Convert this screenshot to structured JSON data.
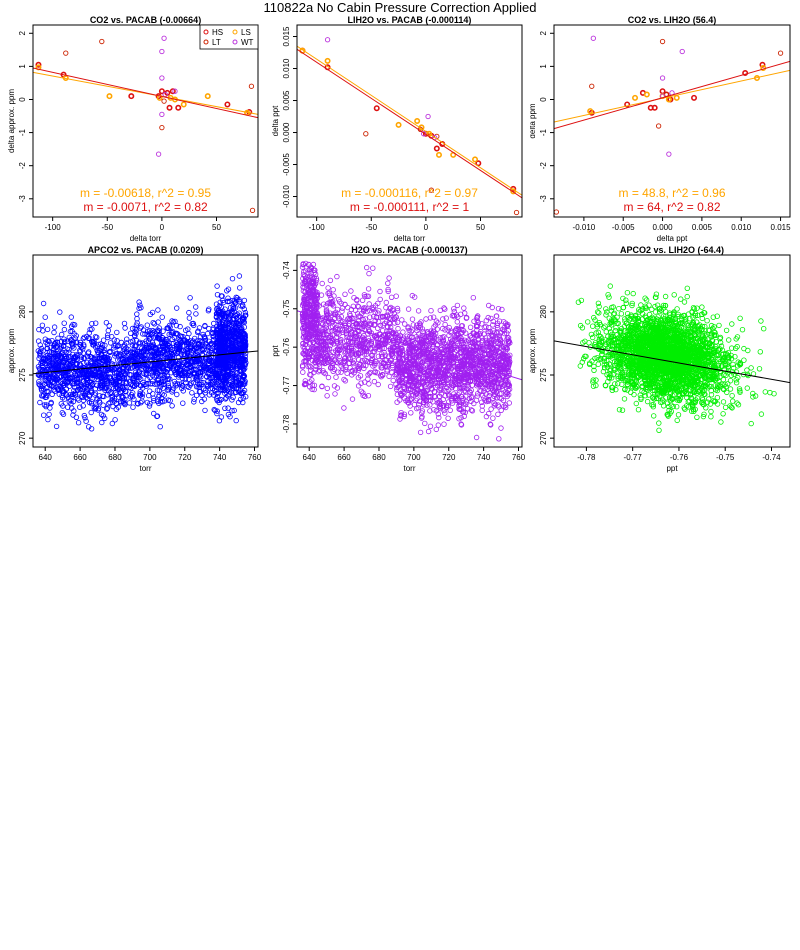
{
  "figure_title": "110822a   No Cabin Pressure Correction Applied",
  "colors": {
    "HS": "#dd1111",
    "LS": "#ffa500",
    "LT": "#cc2200",
    "WT": "#bb33dd",
    "apco2": "#0000ff",
    "h2o": "#a020f0",
    "apco2_h2o": "#00ee00",
    "fit_black": "#000000"
  },
  "legend_labels": [
    "HS",
    "LS",
    "LT",
    "WT"
  ],
  "chart_data": [
    {
      "type": "scatter",
      "title": "CO2 vs. PACAB (-0.00664)",
      "xlabel": "delta torr",
      "ylabel": "delta approx. ppm",
      "xlim": [
        -118,
        88
      ],
      "ylim": [
        -3.55,
        2.25
      ],
      "xticks": [
        -100,
        -50,
        0,
        50
      ],
      "yticks": [
        -3,
        -2,
        -1,
        0,
        1,
        2
      ],
      "legend": "top-right",
      "series": [
        {
          "name": "HS",
          "points": [
            [
              -113,
              1.05
            ],
            [
              -90,
              0.75
            ],
            [
              -28,
              0.1
            ],
            [
              -3,
              0.1
            ],
            [
              0,
              0.25
            ],
            [
              5,
              0.2
            ],
            [
              10,
              0.25
            ],
            [
              15,
              -0.25
            ],
            [
              7,
              -0.25
            ],
            [
              60,
              -0.15
            ],
            [
              80,
              -0.38
            ]
          ]
        },
        {
          "name": "LS",
          "points": [
            [
              -113,
              0.97
            ],
            [
              -88,
              0.65
            ],
            [
              -48,
              0.1
            ],
            [
              -2,
              0.05
            ],
            [
              8,
              0.05
            ],
            [
              12,
              0
            ],
            [
              20,
              -0.15
            ],
            [
              42,
              0.1
            ],
            [
              78,
              -0.4
            ]
          ]
        },
        {
          "name": "LT",
          "points": [
            [
              -55,
              1.75
            ],
            [
              -88,
              1.4
            ],
            [
              82,
              0.4
            ],
            [
              83,
              -3.35
            ],
            [
              0,
              -0.85
            ],
            [
              3,
              0.15
            ],
            [
              2,
              -0.05
            ]
          ]
        },
        {
          "name": "WT",
          "points": [
            [
              2,
              1.85
            ],
            [
              0,
              1.45
            ],
            [
              0,
              0.65
            ],
            [
              -3,
              -1.65
            ],
            [
              0,
              -0.45
            ],
            [
              12,
              0.25
            ],
            [
              3,
              0.15
            ]
          ]
        }
      ],
      "fits": [
        {
          "color_key": "LS",
          "x": [
            -118,
            88
          ],
          "y": [
            0.82,
            -0.45
          ]
        },
        {
          "color_key": "HS",
          "x": [
            -118,
            88
          ],
          "y": [
            0.95,
            -0.55
          ]
        }
      ],
      "annotations": [
        {
          "text": "m = -0.00618, r^2 = 0.95",
          "color_key": "LS"
        },
        {
          "text": "m = -0.0071, r^2 = 0.82",
          "color_key": "HS"
        }
      ]
    },
    {
      "type": "scatter",
      "title": "LIH2O vs. PACAB (-0.000114)",
      "xlabel": "delta torr",
      "ylabel": "delta ppt",
      "xlim": [
        -118,
        88
      ],
      "ylim": [
        -0.0132,
        0.0168
      ],
      "xticks": [
        -100,
        -50,
        0,
        50
      ],
      "yticks": [
        -0.01,
        -0.005,
        0.0,
        0.005,
        0.01,
        0.015
      ],
      "ytick_labels": [
        "-0.010",
        "-0.005",
        "0.000",
        "0.005",
        "0.010",
        "0.015"
      ],
      "series": [
        {
          "name": "HS",
          "points": [
            [
              -113,
              0.0128
            ],
            [
              -90,
              0.0102
            ],
            [
              -45,
              0.0038
            ],
            [
              0,
              -0.0002
            ],
            [
              5,
              -0.0005
            ],
            [
              10,
              -0.0025
            ],
            [
              15,
              -0.0018
            ],
            [
              48,
              -0.0048
            ],
            [
              80,
              -0.0088
            ]
          ]
        },
        {
          "name": "LS",
          "points": [
            [
              -113,
              0.0128
            ],
            [
              -90,
              0.0112
            ],
            [
              -25,
              0.0012
            ],
            [
              -8,
              0.0018
            ],
            [
              -4,
              0.0008
            ],
            [
              3,
              -0.0002
            ],
            [
              12,
              -0.0035
            ],
            [
              25,
              -0.0035
            ],
            [
              45,
              -0.0042
            ],
            [
              80,
              -0.0092
            ]
          ]
        },
        {
          "name": "LT",
          "points": [
            [
              -55,
              -0.0002
            ],
            [
              5,
              -0.009
            ],
            [
              83,
              -0.0125
            ],
            [
              10,
              -0.0006
            ],
            [
              -5,
              0.0005
            ]
          ]
        },
        {
          "name": "WT",
          "points": [
            [
              -90,
              0.0145
            ],
            [
              2,
              0.0025
            ],
            [
              -2,
              -0.0002
            ],
            [
              8,
              -0.0008
            ]
          ]
        }
      ],
      "fits": [
        {
          "color_key": "LS",
          "x": [
            -118,
            88
          ],
          "y": [
            0.0135,
            -0.0098
          ]
        },
        {
          "color_key": "HS",
          "x": [
            -118,
            88
          ],
          "y": [
            0.013,
            -0.0102
          ]
        }
      ],
      "annotations": [
        {
          "text": "m = -0.000116, r^2 = 0.97",
          "color_key": "LS"
        },
        {
          "text": "m = -0.000111, r^2 = 1",
          "color_key": "HS"
        }
      ]
    },
    {
      "type": "scatter",
      "title": "CO2 vs. LIH2O (56.4)",
      "xlabel": "delta ppt",
      "ylabel": "delta ppm",
      "xlim": [
        -0.0138,
        0.0162
      ],
      "ylim": [
        -3.55,
        2.25
      ],
      "xticks": [
        -0.01,
        -0.005,
        0.0,
        0.005,
        0.01,
        0.015
      ],
      "xtick_labels": [
        "-0.010",
        "-0.005",
        "0.000",
        "0.005",
        "0.010",
        "0.015"
      ],
      "yticks": [
        -3,
        -2,
        -1,
        0,
        1,
        2
      ],
      "series": [
        {
          "name": "HS",
          "points": [
            [
              -0.009,
              -0.4
            ],
            [
              -0.0045,
              -0.15
            ],
            [
              -0.0025,
              0.2
            ],
            [
              -0.0015,
              -0.25
            ],
            [
              -0.001,
              -0.25
            ],
            [
              0,
              0.25
            ],
            [
              0.0005,
              0.15
            ],
            [
              0.001,
              0
            ],
            [
              0.004,
              0.05
            ],
            [
              0.0105,
              0.8
            ],
            [
              0.0127,
              1.05
            ]
          ]
        },
        {
          "name": "LS",
          "points": [
            [
              -0.0092,
              -0.35
            ],
            [
              -0.0035,
              0.05
            ],
            [
              -0.002,
              0.15
            ],
            [
              0,
              0.1
            ],
            [
              0.0008,
              0
            ],
            [
              0.0018,
              0.05
            ],
            [
              0.012,
              0.65
            ],
            [
              0.0128,
              0.95
            ]
          ]
        },
        {
          "name": "LT",
          "points": [
            [
              -0.0135,
              -3.4
            ],
            [
              -0.009,
              0.4
            ],
            [
              0,
              1.75
            ],
            [
              -0.0005,
              -0.8
            ],
            [
              0.015,
              1.4
            ],
            [
              0.0005,
              0.15
            ]
          ]
        },
        {
          "name": "WT",
          "points": [
            [
              -0.0088,
              1.85
            ],
            [
              0.0025,
              1.45
            ],
            [
              0,
              0.65
            ],
            [
              0.0008,
              -1.65
            ],
            [
              0.0012,
              0.2
            ],
            [
              0,
              0.1
            ]
          ]
        }
      ],
      "fits": [
        {
          "color_key": "LS",
          "x": [
            -0.0138,
            0.0162
          ],
          "y": [
            -0.68,
            0.88
          ]
        },
        {
          "color_key": "HS",
          "x": [
            -0.0138,
            0.0162
          ],
          "y": [
            -0.88,
            1.15
          ]
        }
      ],
      "annotations": [
        {
          "text": "m = 48.8, r^2 = 0.96",
          "color_key": "LS"
        },
        {
          "text": "m = 64, r^2 = 0.82",
          "color_key": "HS"
        }
      ]
    },
    {
      "type": "scatter",
      "title": "APCO2 vs. PACAB (0.0209)",
      "xlabel": "torr",
      "ylabel": "approx. ppm",
      "xlim": [
        633,
        762
      ],
      "ylim": [
        269.3,
        284.5
      ],
      "xticks": [
        640,
        660,
        680,
        700,
        720,
        740,
        760
      ],
      "yticks": [
        270,
        275,
        280
      ],
      "series": [
        {
          "name": "",
          "color_key": "apco2",
          "n_points": 2600,
          "clusters": [
            {
              "x": [
                636,
                690
              ],
              "y_center": 275.3,
              "y_spread": 1.6,
              "weight": 0.35
            },
            {
              "x": [
                690,
                744
              ],
              "y_center": 276.2,
              "y_spread": 1.6,
              "weight": 0.35
            },
            {
              "x": [
                738,
                755
              ],
              "y_center": 277.0,
              "y_spread": 2.0,
              "weight": 0.3
            }
          ],
          "y_range": [
            270.1,
            284.1
          ]
        }
      ],
      "fits": [
        {
          "color_key": "fit_black",
          "x": [
            633,
            762
          ],
          "y": [
            275.1,
            276.9
          ]
        }
      ]
    },
    {
      "type": "scatter",
      "title": "H2O vs. PACAB (-0.000137)",
      "xlabel": "torr",
      "ylabel": "ppt",
      "xlim": [
        633,
        762
      ],
      "ylim": [
        -0.786,
        -0.736
      ],
      "xticks": [
        640,
        660,
        680,
        700,
        720,
        740,
        760
      ],
      "yticks": [
        -0.78,
        -0.77,
        -0.76,
        -0.75,
        -0.74
      ],
      "series": [
        {
          "name": "",
          "color_key": "h2o",
          "n_points": 2600,
          "clusters": [
            {
              "x": [
                636,
                645
              ],
              "y_center": -0.752,
              "y_spread": 0.008,
              "weight": 0.15
            },
            {
              "x": [
                645,
                690
              ],
              "y_center": -0.758,
              "y_spread": 0.006,
              "weight": 0.25
            },
            {
              "x": [
                690,
                755
              ],
              "y_center": -0.765,
              "y_spread": 0.006,
              "weight": 0.6
            }
          ],
          "y_range": [
            -0.784,
            -0.738
          ]
        }
      ],
      "fits": [
        {
          "color_key": "h2o",
          "x": [
            633,
            762
          ],
          "y": [
            -0.7505,
            -0.7685
          ]
        }
      ]
    },
    {
      "type": "scatter",
      "title": "APCO2 vs. LIH2O (-64.4)",
      "xlabel": "ppt",
      "ylabel": "approx. ppm",
      "xlim": [
        -0.787,
        -0.736
      ],
      "ylim": [
        269.3,
        284.5
      ],
      "xticks": [
        -0.78,
        -0.77,
        -0.76,
        -0.75,
        -0.74
      ],
      "yticks": [
        270,
        275,
        280
      ],
      "series": [
        {
          "name": "",
          "color_key": "apco2_h2o",
          "n_points": 2800,
          "clusters": [
            {
              "x_center": -0.763,
              "x_spread": 0.007,
              "y_center": 276.5,
              "y_spread": 1.7,
              "weight": 1
            }
          ],
          "x_range": [
            -0.782,
            -0.738
          ],
          "y_range": [
            270.1,
            282.1
          ]
        }
      ],
      "fits": [
        {
          "color_key": "fit_black",
          "x": [
            -0.787,
            -0.736
          ],
          "y": [
            277.7,
            274.4
          ]
        }
      ]
    }
  ]
}
